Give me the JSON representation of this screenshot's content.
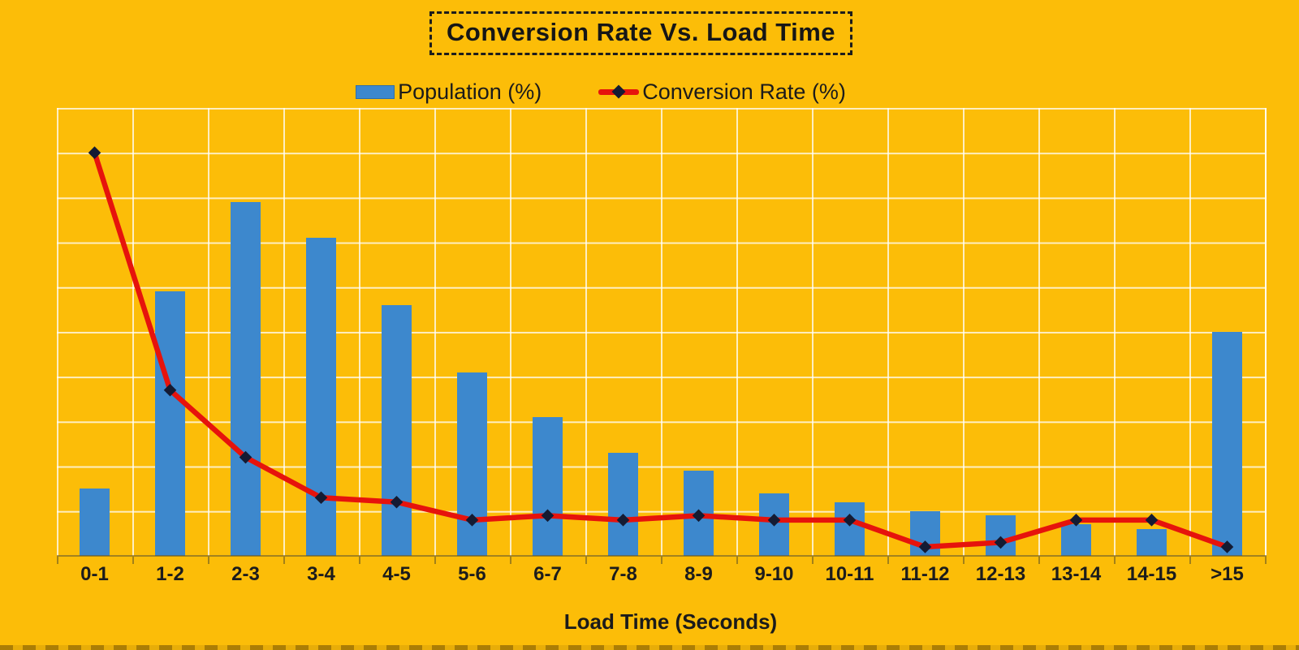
{
  "title": "Conversion Rate Vs. Load Time",
  "legend": {
    "population_label": "Population (%)",
    "conversion_label": "Conversion Rate (%)"
  },
  "xaxis_title": "Load Time (Seconds)",
  "colors": {
    "background": "#fcbd08",
    "bar": "#3d88cd",
    "line": "#e6130c",
    "marker": "#141b33",
    "gridline": "rgba(255,255,255,0.75)",
    "text": "#1b1b1b"
  },
  "chart_data": {
    "type": "bar",
    "subtype": "bar+line combo",
    "title": "Conversion Rate Vs. Load Time",
    "xlabel": "Load Time (Seconds)",
    "ylabel": "",
    "ylim": [
      0,
      100
    ],
    "grid": true,
    "legend_position": "top",
    "categories": [
      "0-1",
      "1-2",
      "2-3",
      "3-4",
      "4-5",
      "5-6",
      "6-7",
      "7-8",
      "8-9",
      "9-10",
      "10-11",
      "11-12",
      "12-13",
      "13-14",
      "14-15",
      ">15"
    ],
    "series": [
      {
        "name": "Population (%)",
        "type": "bar",
        "color": "#3d88cd",
        "values": [
          15,
          59,
          79,
          71,
          56,
          41,
          31,
          23,
          19,
          14,
          12,
          10,
          9,
          7,
          6,
          50
        ]
      },
      {
        "name": "Conversion Rate (%)",
        "type": "line",
        "color": "#e6130c",
        "marker": "diamond",
        "marker_color": "#141b33",
        "values": [
          90,
          37,
          22,
          13,
          12,
          8,
          9,
          8,
          9,
          8,
          8,
          2,
          3,
          8,
          8,
          2
        ]
      }
    ]
  }
}
